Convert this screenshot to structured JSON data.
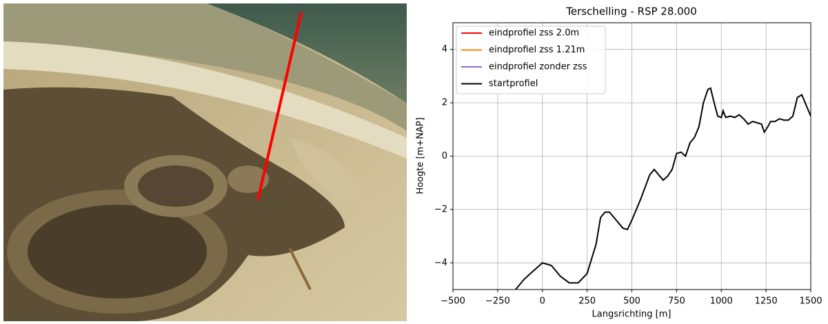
{
  "chart_data": {
    "type": "line",
    "title": "Terschelling - RSP 28.000",
    "xlabel": "Langsrichting [m]",
    "ylabel": "Hoogte [m+NAP]",
    "x": [
      -150,
      -100,
      -50,
      0,
      50,
      100,
      150,
      200,
      250,
      300,
      325,
      350,
      375,
      400,
      450,
      475,
      500,
      550,
      600,
      625,
      650,
      675,
      700,
      725,
      750,
      775,
      800,
      825,
      850,
      875,
      900,
      925,
      940,
      960,
      980,
      1000,
      1010,
      1025,
      1050,
      1075,
      1100,
      1125,
      1150,
      1175,
      1200,
      1225,
      1240,
      1260,
      1275,
      1300,
      1325,
      1350,
      1375,
      1400,
      1425,
      1450,
      1475,
      1500
    ],
    "series": [
      {
        "name": "eindprofiel zss 2.0m",
        "color": "#ff0000",
        "values": [
          null,
          null,
          null,
          null,
          null,
          null,
          null,
          null,
          null,
          null,
          null,
          null,
          null,
          null,
          null,
          null,
          null,
          null,
          null,
          null,
          null,
          null,
          null,
          null,
          null,
          null,
          null,
          null,
          null,
          null,
          null,
          null,
          null,
          null,
          null,
          null,
          null,
          null,
          null,
          null,
          null,
          null,
          null,
          null,
          null,
          null,
          null,
          null,
          null,
          null,
          null,
          null,
          null,
          null,
          null,
          null,
          null,
          null
        ]
      },
      {
        "name": "eindprofiel zss 1.21m",
        "color": "#ff7f0e",
        "values": [
          null,
          null,
          null,
          null,
          null,
          null,
          null,
          null,
          null,
          null,
          null,
          null,
          null,
          null,
          null,
          null,
          null,
          null,
          null,
          null,
          null,
          null,
          null,
          null,
          null,
          null,
          null,
          null,
          null,
          null,
          null,
          null,
          null,
          null,
          null,
          null,
          null,
          null,
          null,
          null,
          null,
          null,
          null,
          null,
          null,
          null,
          null,
          null,
          null,
          null,
          null,
          null,
          null,
          null,
          null,
          null,
          null,
          null
        ]
      },
      {
        "name": "eindprofiel zonder zss",
        "color": "#9467bd",
        "values": [
          null,
          null,
          null,
          null,
          null,
          null,
          null,
          null,
          null,
          null,
          null,
          null,
          null,
          null,
          null,
          null,
          null,
          null,
          null,
          null,
          null,
          null,
          null,
          null,
          null,
          null,
          null,
          null,
          null,
          null,
          null,
          null,
          null,
          null,
          null,
          null,
          null,
          null,
          null,
          null,
          null,
          null,
          null,
          null,
          null,
          null,
          null,
          null,
          null,
          null,
          null,
          null,
          null,
          null,
          null,
          null,
          null,
          null
        ]
      },
      {
        "name": "startprofiel",
        "color": "#000000",
        "values": [
          -5.0,
          -4.6,
          -4.3,
          -4.0,
          -4.1,
          -4.5,
          -4.75,
          -4.75,
          -4.4,
          -3.3,
          -2.3,
          -2.1,
          -2.1,
          -2.3,
          -2.7,
          -2.75,
          -2.4,
          -1.6,
          -0.7,
          -0.5,
          -0.7,
          -0.9,
          -0.75,
          -0.5,
          0.1,
          0.15,
          0.0,
          0.5,
          0.7,
          1.1,
          2.0,
          2.5,
          2.55,
          2.0,
          1.5,
          1.45,
          1.7,
          1.45,
          1.5,
          1.45,
          1.55,
          1.4,
          1.2,
          1.3,
          1.25,
          1.2,
          0.9,
          1.1,
          1.3,
          1.3,
          1.4,
          1.35,
          1.35,
          1.5,
          2.2,
          2.3,
          1.9,
          1.5
        ]
      }
    ],
    "xlim": [
      -500,
      1500
    ],
    "xticks": [
      {
        "value": -500,
        "label": "−500"
      },
      {
        "value": -250,
        "label": "−250"
      },
      0,
      250,
      500,
      750,
      1000,
      1250,
      1500
    ],
    "ylim": [
      -5,
      5
    ],
    "yticks": [
      {
        "value": -4,
        "label": "−4"
      },
      {
        "value": -2,
        "label": "−2"
      },
      0,
      2,
      4
    ],
    "grid": true,
    "legend": "upper left"
  }
}
